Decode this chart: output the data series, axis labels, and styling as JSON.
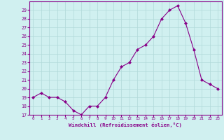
{
  "x": [
    0,
    1,
    2,
    3,
    4,
    5,
    6,
    7,
    8,
    9,
    10,
    11,
    12,
    13,
    14,
    15,
    16,
    17,
    18,
    19,
    20,
    21,
    22,
    23
  ],
  "y": [
    19.0,
    19.5,
    19.0,
    19.0,
    18.5,
    17.5,
    17.0,
    18.0,
    18.0,
    19.0,
    21.0,
    22.5,
    23.0,
    24.5,
    25.0,
    26.0,
    28.0,
    29.0,
    29.5,
    27.5,
    24.5,
    21.0,
    20.5,
    20.0
  ],
  "xlabel": "Windchill (Refroidissement éolien,°C)",
  "ylim": [
    17,
    30
  ],
  "xlim": [
    -0.5,
    23.5
  ],
  "yticks": [
    17,
    18,
    19,
    20,
    21,
    22,
    23,
    24,
    25,
    26,
    27,
    28,
    29
  ],
  "xticks": [
    0,
    1,
    2,
    3,
    4,
    5,
    6,
    7,
    8,
    9,
    10,
    11,
    12,
    13,
    14,
    15,
    16,
    17,
    18,
    19,
    20,
    21,
    22,
    23
  ],
  "line_color": "#880088",
  "marker_color": "#880088",
  "bg_color": "#d0f0f0",
  "grid_color": "#b0d8d8",
  "tick_label_color": "#880088",
  "xlabel_color": "#880088",
  "border_color": "#880088"
}
